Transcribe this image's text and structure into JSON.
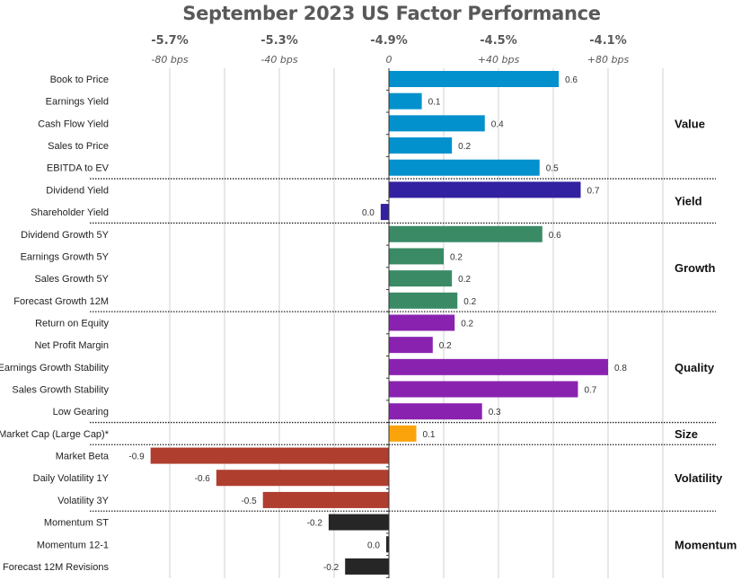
{
  "chart_data": {
    "type": "bar",
    "orientation": "horizontal",
    "title": "September 2023 US Factor Performance",
    "xlabel": "",
    "ylabel": "",
    "xlim": [
      -0.8,
      1.0
    ],
    "grid": true,
    "top_axis_ticks": [
      {
        "value": -0.8,
        "pct": "-5.7%",
        "bps": "-80 bps"
      },
      {
        "value": -0.4,
        "pct": "-5.3%",
        "bps": "-40 bps"
      },
      {
        "value": 0.0,
        "pct": "-4.9%",
        "bps": "0"
      },
      {
        "value": 0.4,
        "pct": "-4.5%",
        "bps": "+40 bps"
      },
      {
        "value": 0.8,
        "pct": "-4.1%",
        "bps": "+80 bps"
      }
    ],
    "gridlines": [
      -0.8,
      -0.6,
      -0.4,
      -0.2,
      0.2,
      0.4,
      0.6,
      0.8,
      1.0
    ],
    "groups": [
      {
        "name": "Value",
        "color": "#0391CD",
        "factors": [
          {
            "label": "Book to Price",
            "value": 0.62,
            "display": "0.6"
          },
          {
            "label": "Earnings Yield",
            "value": 0.12,
            "display": "0.1"
          },
          {
            "label": "Cash Flow Yield",
            "value": 0.35,
            "display": "0.4"
          },
          {
            "label": "Sales to Price",
            "value": 0.23,
            "display": "0.2"
          },
          {
            "label": "EBITDA to EV",
            "value": 0.55,
            "display": "0.5"
          }
        ]
      },
      {
        "name": "Yield",
        "color": "#3221A0",
        "factors": [
          {
            "label": "Dividend Yield",
            "value": 0.7,
            "display": "0.7"
          },
          {
            "label": "Shareholder Yield",
            "value": -0.03,
            "display": "0.0"
          }
        ]
      },
      {
        "name": "Growth",
        "color": "#3A8A66",
        "factors": [
          {
            "label": "Dividend Growth 5Y",
            "value": 0.56,
            "display": "0.6"
          },
          {
            "label": "Earnings Growth 5Y",
            "value": 0.2,
            "display": "0.2"
          },
          {
            "label": "Sales Growth 5Y",
            "value": 0.23,
            "display": "0.2"
          },
          {
            "label": "Forecast Growth 12M",
            "value": 0.25,
            "display": "0.2"
          }
        ]
      },
      {
        "name": "Quality",
        "color": "#8A22B0",
        "factors": [
          {
            "label": "Return on Equity",
            "value": 0.24,
            "display": "0.2"
          },
          {
            "label": "Net Profit Margin",
            "value": 0.16,
            "display": "0.2"
          },
          {
            "label": "Earnings Growth Stability",
            "value": 0.8,
            "display": "0.8"
          },
          {
            "label": "Sales Growth Stability",
            "value": 0.69,
            "display": "0.7"
          },
          {
            "label": "Low Gearing",
            "value": 0.34,
            "display": "0.3"
          }
        ]
      },
      {
        "name": "Size",
        "color": "#FAA30A",
        "factors": [
          {
            "label": "Market Cap (Large Cap)*",
            "value": 0.1,
            "display": "0.1"
          }
        ]
      },
      {
        "name": "Volatility",
        "color": "#B03E2F",
        "factors": [
          {
            "label": "Market Beta",
            "value": -0.87,
            "display": "-0.9"
          },
          {
            "label": "Daily Volatility 1Y",
            "value": -0.63,
            "display": "-0.6"
          },
          {
            "label": "Volatility 3Y",
            "value": -0.46,
            "display": "-0.5"
          }
        ]
      },
      {
        "name": "Momentum",
        "color": "#262626",
        "factors": [
          {
            "label": "Momentum ST",
            "value": -0.22,
            "display": "-0.2"
          },
          {
            "label": "Momentum 12-1",
            "value": -0.01,
            "display": "0.0"
          },
          {
            "label": "Forecast 12M Revisions",
            "value": -0.16,
            "display": "-0.2"
          }
        ]
      }
    ]
  }
}
